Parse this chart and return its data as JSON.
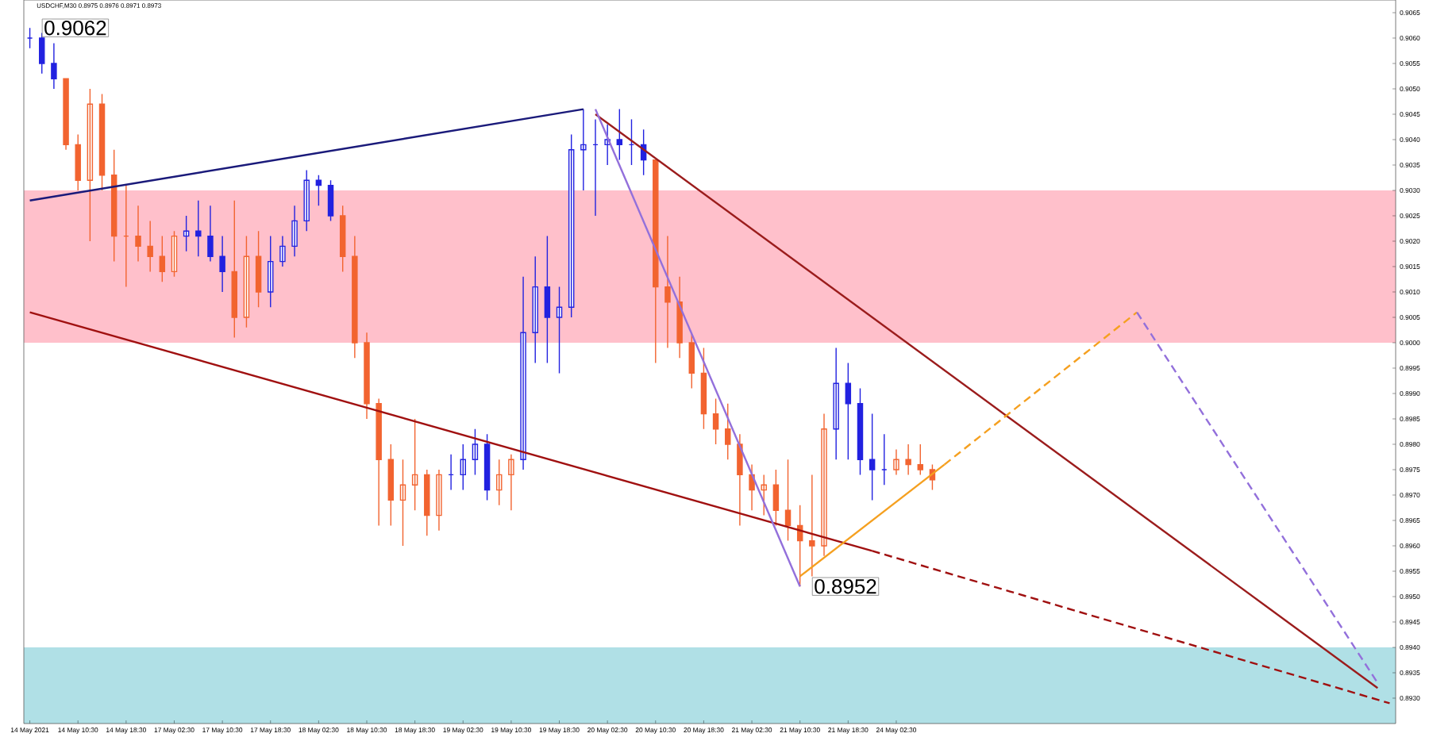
{
  "chart_data": {
    "type": "candlestick",
    "title": "USDCHF,M30  0.8975 0.8976 0.8971 0.8973",
    "categories": [
      "14 May 2021",
      null,
      null,
      null,
      "14 May 10:30",
      null,
      null,
      null,
      "14 May 18:30",
      null,
      null,
      null,
      "17 May 02:30",
      null,
      null,
      null,
      "17 May 10:30",
      null,
      null,
      null,
      "17 May 18:30",
      null,
      null,
      null,
      "18 May 02:30",
      null,
      null,
      null,
      "18 May 10:30",
      null,
      null,
      null,
      "18 May 18:30",
      null,
      null,
      null,
      "19 May 02:30",
      null,
      null,
      null,
      "19 May 10:30",
      null,
      null,
      null,
      "19 May 18:30",
      null,
      null,
      null,
      "20 May 02:30",
      null,
      null,
      null,
      "20 May 10:30",
      null,
      null,
      null,
      "20 May 18:30",
      null,
      null,
      null,
      "21 May 02:30",
      null,
      null,
      null,
      "21 May 10:30",
      null,
      null,
      null,
      "21 May 18:30",
      null,
      null,
      null,
      "24 May 02:30",
      null,
      null,
      null,
      null,
      null,
      null,
      null,
      null,
      null,
      null,
      null,
      null,
      null,
      null,
      null,
      null,
      null,
      null,
      null,
      null,
      null,
      null,
      null,
      null,
      null,
      null,
      null,
      null,
      null,
      null,
      null,
      null,
      null,
      null,
      null,
      null,
      null,
      null,
      null,
      null,
      null
    ],
    "ohlc": [
      [
        0.906,
        0.9062,
        0.9058,
        0.906
      ],
      [
        0.906,
        0.9061,
        0.9053,
        0.9055
      ],
      [
        0.9055,
        0.9059,
        0.905,
        0.9052
      ],
      [
        0.9052,
        0.9052,
        0.9038,
        0.9039
      ],
      [
        0.9039,
        0.9041,
        0.903,
        0.9032
      ],
      [
        0.9032,
        0.905,
        0.902,
        0.9047
      ],
      [
        0.9047,
        0.9049,
        0.903,
        0.9033
      ],
      [
        0.9033,
        0.9038,
        0.9016,
        0.9021
      ],
      [
        0.9021,
        0.9031,
        0.9011,
        0.9021
      ],
      [
        0.9021,
        0.9027,
        0.9016,
        0.9019
      ],
      [
        0.9019,
        0.9024,
        0.9014,
        0.9017
      ],
      [
        0.9017,
        0.9021,
        0.9012,
        0.9014
      ],
      [
        0.9014,
        0.9022,
        0.9013,
        0.9021
      ],
      [
        0.9021,
        0.9025,
        0.9018,
        0.9022
      ],
      [
        0.9022,
        0.9028,
        0.9017,
        0.9021
      ],
      [
        0.9021,
        0.9027,
        0.9016,
        0.9017
      ],
      [
        0.9017,
        0.9021,
        0.901,
        0.9014
      ],
      [
        0.9014,
        0.9028,
        0.9001,
        0.9005
      ],
      [
        0.9005,
        0.9021,
        0.9003,
        0.9017
      ],
      [
        0.9017,
        0.9022,
        0.9007,
        0.901
      ],
      [
        0.901,
        0.9021,
        0.9007,
        0.9016
      ],
      [
        0.9016,
        0.9021,
        0.9015,
        0.9019
      ],
      [
        0.9019,
        0.9027,
        0.9017,
        0.9024
      ],
      [
        0.9024,
        0.9034,
        0.9022,
        0.9032
      ],
      [
        0.9032,
        0.9033,
        0.9027,
        0.9031
      ],
      [
        0.9031,
        0.9032,
        0.9024,
        0.9025
      ],
      [
        0.9025,
        0.9027,
        0.9014,
        0.9017
      ],
      [
        0.9017,
        0.9021,
        0.8997,
        0.9
      ],
      [
        0.9,
        0.9002,
        0.8985,
        0.8988
      ],
      [
        0.8988,
        0.8989,
        0.8964,
        0.8977
      ],
      [
        0.8977,
        0.898,
        0.8964,
        0.8969
      ],
      [
        0.8969,
        0.8977,
        0.896,
        0.8972
      ],
      [
        0.8972,
        0.8985,
        0.8967,
        0.8974
      ],
      [
        0.8974,
        0.8975,
        0.8962,
        0.8966
      ],
      [
        0.8966,
        0.8975,
        0.8963,
        0.8974
      ],
      [
        0.8974,
        0.8978,
        0.8971,
        0.8974
      ],
      [
        0.8974,
        0.898,
        0.8971,
        0.8977
      ],
      [
        0.8977,
        0.8983,
        0.8974,
        0.898
      ],
      [
        0.898,
        0.8982,
        0.8969,
        0.8971
      ],
      [
        0.8971,
        0.8977,
        0.8968,
        0.8974
      ],
      [
        0.8974,
        0.8978,
        0.8967,
        0.8977
      ],
      [
        0.8977,
        0.9013,
        0.8975,
        0.9002
      ],
      [
        0.9002,
        0.9017,
        0.8996,
        0.9011
      ],
      [
        0.9011,
        0.9021,
        0.8996,
        0.9005
      ],
      [
        0.9005,
        0.9011,
        0.8994,
        0.9007
      ],
      [
        0.9007,
        0.9041,
        0.9005,
        0.9038
      ],
      [
        0.9038,
        0.9046,
        0.903,
        0.9039
      ],
      [
        0.9039,
        0.9044,
        0.9025,
        0.9039
      ],
      [
        0.9039,
        0.9043,
        0.9035,
        0.904
      ],
      [
        0.904,
        0.9046,
        0.9036,
        0.9039
      ],
      [
        0.9039,
        0.9044,
        0.9035,
        0.9039
      ],
      [
        0.9039,
        0.9042,
        0.9033,
        0.9036
      ],
      [
        0.9036,
        0.9036,
        0.8996,
        0.9011
      ],
      [
        0.9011,
        0.9021,
        0.8999,
        0.9008
      ],
      [
        0.9008,
        0.9013,
        0.8997,
        0.9
      ],
      [
        0.9,
        0.9002,
        0.8991,
        0.8994
      ],
      [
        0.8994,
        0.8999,
        0.8983,
        0.8986
      ],
      [
        0.8986,
        0.8989,
        0.898,
        0.8983
      ],
      [
        0.8983,
        0.8988,
        0.8977,
        0.898
      ],
      [
        0.898,
        0.8982,
        0.8964,
        0.8974
      ],
      [
        0.8974,
        0.8976,
        0.8967,
        0.8971
      ],
      [
        0.8971,
        0.8974,
        0.8966,
        0.8972
      ],
      [
        0.8972,
        0.8975,
        0.8964,
        0.8967
      ],
      [
        0.8967,
        0.8977,
        0.8961,
        0.8964
      ],
      [
        0.8964,
        0.8968,
        0.8952,
        0.8961
      ],
      [
        0.8961,
        0.8974,
        0.8954,
        0.896
      ],
      [
        0.896,
        0.8986,
        0.8958,
        0.8983
      ],
      [
        0.8983,
        0.8999,
        0.8977,
        0.8992
      ],
      [
        0.8992,
        0.8996,
        0.8977,
        0.8988
      ],
      [
        0.8988,
        0.8991,
        0.8974,
        0.8977
      ],
      [
        0.8977,
        0.8986,
        0.8969,
        0.8975
      ],
      [
        0.8975,
        0.8982,
        0.8972,
        0.8975
      ],
      [
        0.8975,
        0.8979,
        0.8974,
        0.8977
      ],
      [
        0.8977,
        0.898,
        0.8974,
        0.8976
      ],
      [
        0.8976,
        0.898,
        0.8974,
        0.8975
      ],
      [
        0.8975,
        0.8976,
        0.8971,
        0.8973
      ],
      null,
      null,
      null,
      null,
      null,
      null,
      null,
      null,
      null,
      null,
      null,
      null,
      null,
      null,
      null,
      null,
      null,
      null,
      null,
      null,
      null,
      null,
      null,
      null,
      null,
      null,
      null,
      null,
      null,
      null,
      null,
      null,
      null,
      null,
      null,
      null,
      null,
      null
    ],
    "colors": [
      "#2222e0",
      "#2222e0",
      "#2222e0",
      "#f26430",
      "#f26430",
      "#f26430",
      "#f26430",
      "#f26430",
      "#f26430",
      "#f26430",
      "#f26430",
      "#f26430",
      "#f26430",
      "#2222e0",
      "#2222e0",
      "#2222e0",
      "#2222e0",
      "#f26430",
      "#f26430",
      "#f26430",
      "#2222e0",
      "#2222e0",
      "#2222e0",
      "#2222e0",
      "#2222e0",
      "#2222e0",
      "#f26430",
      "#f26430",
      "#f26430",
      "#f26430",
      "#f26430",
      "#f26430",
      "#f26430",
      "#f26430",
      "#f26430",
      "#2222e0",
      "#2222e0",
      "#2222e0",
      "#2222e0",
      "#f26430",
      "#f26430",
      "#2222e0",
      "#2222e0",
      "#2222e0",
      "#2222e0",
      "#2222e0",
      "#2222e0",
      "#2222e0",
      "#2222e0",
      "#2222e0",
      "#2222e0",
      "#2222e0",
      "#f26430",
      "#f26430",
      "#f26430",
      "#f26430",
      "#f26430",
      "#f26430",
      "#f26430",
      "#f26430",
      "#f26430",
      "#f26430",
      "#f26430",
      "#f26430",
      "#f26430",
      "#f26430",
      "#f26430",
      "#2222e0",
      "#2222e0",
      "#2222e0",
      "#2222e0",
      "#2222e0",
      "#f26430",
      "#f26430",
      "#f26430",
      "#f26430",
      null,
      null,
      null,
      null,
      null,
      null,
      null,
      null,
      null,
      null,
      null,
      null,
      null,
      null,
      null,
      null,
      null,
      null,
      null,
      null,
      null,
      null,
      null,
      null,
      null,
      null,
      null,
      null,
      null,
      null,
      null,
      null,
      null,
      null,
      null,
      null,
      null,
      null
    ],
    "series": [
      {
        "type": "line",
        "color": "#1a1a7a",
        "line_style": "solid",
        "values": [
          0.9028,
          null,
          null,
          null,
          null,
          null,
          null,
          null,
          null,
          null,
          null,
          null,
          null,
          null,
          null,
          null,
          null,
          null,
          null,
          null,
          null,
          null,
          null,
          null,
          null,
          null,
          null,
          null,
          null,
          null,
          null,
          null,
          null,
          null,
          null,
          null,
          null,
          null,
          null,
          null,
          null,
          null,
          null,
          null,
          null,
          null,
          0.9046,
          null,
          null,
          null,
          null,
          null,
          null,
          null,
          null,
          null,
          null,
          null,
          null,
          null,
          null,
          null,
          null,
          null,
          null,
          null,
          null,
          null,
          null,
          null,
          null,
          null,
          null,
          null,
          null,
          null,
          null,
          null,
          null,
          null,
          null,
          null,
          null,
          null,
          null,
          null,
          null,
          null,
          null,
          null,
          null,
          null,
          null,
          null,
          null,
          null,
          null,
          null,
          null,
          null,
          null,
          null,
          null,
          null,
          null,
          null,
          null,
          null,
          null,
          null,
          null,
          null,
          null,
          null
        ]
      },
      {
        "type": "line",
        "color": "#a01010",
        "line_style": "solid",
        "values": [
          0.9006,
          null,
          null,
          null,
          null,
          null,
          null,
          null,
          null,
          null,
          null,
          null,
          null,
          null,
          null,
          null,
          null,
          null,
          null,
          null,
          null,
          null,
          null,
          null,
          null,
          null,
          null,
          null,
          null,
          null,
          null,
          null,
          null,
          null,
          null,
          null,
          null,
          null,
          null,
          null,
          null,
          null,
          null,
          null,
          null,
          null,
          null,
          null,
          null,
          null,
          null,
          null,
          null,
          null,
          null,
          null,
          null,
          null,
          null,
          null,
          null,
          null,
          null,
          null,
          null,
          null,
          null,
          null,
          null,
          null,
          0.8959,
          null,
          null,
          null,
          null,
          null,
          null,
          null,
          null,
          null,
          null,
          null,
          null,
          null,
          null,
          null,
          null,
          null,
          null,
          null,
          null,
          null,
          null,
          null,
          null,
          null,
          null,
          null,
          null,
          null,
          null,
          null,
          null,
          null,
          null,
          null,
          null,
          null,
          null,
          null,
          null,
          null,
          null,
          null
        ]
      },
      {
        "type": "line",
        "color": "#a01010",
        "line_style": "dashed",
        "values": [
          null,
          null,
          null,
          null,
          null,
          null,
          null,
          null,
          null,
          null,
          null,
          null,
          null,
          null,
          null,
          null,
          null,
          null,
          null,
          null,
          null,
          null,
          null,
          null,
          null,
          null,
          null,
          null,
          null,
          null,
          null,
          null,
          null,
          null,
          null,
          null,
          null,
          null,
          null,
          null,
          null,
          null,
          null,
          null,
          null,
          null,
          null,
          null,
          null,
          null,
          null,
          null,
          null,
          null,
          null,
          null,
          null,
          null,
          null,
          null,
          null,
          null,
          null,
          null,
          null,
          null,
          null,
          null,
          null,
          null,
          0.8959,
          null,
          null,
          null,
          null,
          null,
          null,
          null,
          null,
          null,
          null,
          null,
          null,
          null,
          null,
          null,
          null,
          null,
          null,
          null,
          null,
          null,
          null,
          null,
          null,
          null,
          null,
          null,
          null,
          null,
          null,
          null,
          null,
          null,
          null,
          null,
          null,
          null,
          null,
          null,
          null,
          null,
          null,
          0.8929
        ]
      },
      {
        "type": "line",
        "color": "#9b1c1c",
        "line_style": "solid",
        "values": [
          null,
          null,
          null,
          null,
          null,
          null,
          null,
          null,
          null,
          null,
          null,
          null,
          null,
          null,
          null,
          null,
          null,
          null,
          null,
          null,
          null,
          null,
          null,
          null,
          null,
          null,
          null,
          null,
          null,
          null,
          null,
          null,
          null,
          null,
          null,
          null,
          null,
          null,
          null,
          null,
          null,
          null,
          null,
          null,
          null,
          null,
          null,
          0.9045,
          null,
          null,
          null,
          null,
          null,
          null,
          null,
          null,
          null,
          null,
          null,
          null,
          null,
          null,
          null,
          null,
          null,
          null,
          null,
          null,
          null,
          null,
          null,
          null,
          null,
          null,
          null,
          null,
          null,
          null,
          null,
          null,
          null,
          null,
          null,
          null,
          null,
          null,
          null,
          null,
          null,
          null,
          null,
          null,
          null,
          null,
          null,
          null,
          null,
          null,
          null,
          null,
          null,
          null,
          null,
          null,
          null,
          null,
          null,
          null,
          null,
          null,
          null,
          null,
          0.8932,
          null
        ]
      },
      {
        "type": "line",
        "color": "#9370db",
        "line_style": "solid",
        "values": [
          null,
          null,
          null,
          null,
          null,
          null,
          null,
          null,
          null,
          null,
          null,
          null,
          null,
          null,
          null,
          null,
          null,
          null,
          null,
          null,
          null,
          null,
          null,
          null,
          null,
          null,
          null,
          null,
          null,
          null,
          null,
          null,
          null,
          null,
          null,
          null,
          null,
          null,
          null,
          null,
          null,
          null,
          null,
          null,
          null,
          null,
          null,
          0.9046,
          null,
          null,
          null,
          null,
          null,
          null,
          null,
          null,
          null,
          null,
          null,
          null,
          null,
          null,
          null,
          null,
          0.8952,
          null,
          null,
          null,
          null,
          null,
          null,
          null,
          null,
          null,
          null,
          null,
          null,
          null,
          null,
          null,
          null,
          null,
          null,
          null,
          null,
          null,
          null,
          null,
          null,
          null,
          null,
          null,
          null,
          null,
          null,
          null,
          null,
          null,
          null,
          null,
          null,
          null,
          null,
          null,
          null,
          null,
          null,
          null,
          null,
          null,
          null,
          null,
          null,
          null
        ]
      },
      {
        "type": "line",
        "color": "#f5a020",
        "line_style": "solid",
        "values": [
          null,
          null,
          null,
          null,
          null,
          null,
          null,
          null,
          null,
          null,
          null,
          null,
          null,
          null,
          null,
          null,
          null,
          null,
          null,
          null,
          null,
          null,
          null,
          null,
          null,
          null,
          null,
          null,
          null,
          null,
          null,
          null,
          null,
          null,
          null,
          null,
          null,
          null,
          null,
          null,
          null,
          null,
          null,
          null,
          null,
          null,
          null,
          null,
          null,
          null,
          null,
          null,
          null,
          null,
          null,
          null,
          null,
          null,
          null,
          null,
          null,
          null,
          null,
          null,
          0.8954,
          null,
          null,
          null,
          null,
          null,
          null,
          null,
          null,
          null,
          null,
          null,
          0.8976,
          null,
          null,
          null,
          null,
          null,
          null,
          null,
          null,
          null,
          null,
          null,
          null,
          null,
          null,
          null,
          null,
          null,
          null,
          null,
          null,
          null,
          null,
          null,
          null,
          null,
          null,
          null,
          null,
          null,
          null,
          null,
          null,
          null,
          null,
          null,
          null,
          null
        ]
      },
      {
        "type": "line",
        "color": "#f5a020",
        "line_style": "dashed",
        "values": [
          null,
          null,
          null,
          null,
          null,
          null,
          null,
          null,
          null,
          null,
          null,
          null,
          null,
          null,
          null,
          null,
          null,
          null,
          null,
          null,
          null,
          null,
          null,
          null,
          null,
          null,
          null,
          null,
          null,
          null,
          null,
          null,
          null,
          null,
          null,
          null,
          null,
          null,
          null,
          null,
          null,
          null,
          null,
          null,
          null,
          null,
          null,
          null,
          null,
          null,
          null,
          null,
          null,
          null,
          null,
          null,
          null,
          null,
          null,
          null,
          null,
          null,
          null,
          null,
          null,
          null,
          null,
          null,
          null,
          null,
          null,
          null,
          null,
          null,
          null,
          null,
          0.8976,
          null,
          null,
          null,
          null,
          null,
          null,
          null,
          null,
          null,
          null,
          null,
          null,
          null,
          null,
          null,
          0.9006,
          null,
          null,
          null,
          null,
          null,
          null,
          null,
          null,
          null,
          null,
          null,
          null,
          null,
          null,
          null,
          null,
          null,
          null,
          null,
          null,
          null
        ]
      },
      {
        "type": "line",
        "color": "#9370db",
        "line_style": "dashed",
        "values": [
          null,
          null,
          null,
          null,
          null,
          null,
          null,
          null,
          null,
          null,
          null,
          null,
          null,
          null,
          null,
          null,
          null,
          null,
          null,
          null,
          null,
          null,
          null,
          null,
          null,
          null,
          null,
          null,
          null,
          null,
          null,
          null,
          null,
          null,
          null,
          null,
          null,
          null,
          null,
          null,
          null,
          null,
          null,
          null,
          null,
          null,
          null,
          null,
          null,
          null,
          null,
          null,
          null,
          null,
          null,
          null,
          null,
          null,
          null,
          null,
          null,
          null,
          null,
          null,
          null,
          null,
          null,
          null,
          null,
          null,
          null,
          null,
          null,
          null,
          null,
          null,
          null,
          null,
          null,
          null,
          null,
          null,
          null,
          null,
          null,
          null,
          null,
          null,
          null,
          null,
          null,
          null,
          0.9006,
          null,
          null,
          null,
          null,
          null,
          null,
          null,
          null,
          null,
          null,
          null,
          null,
          null,
          null,
          null,
          null,
          null,
          null,
          null,
          0.8933,
          null
        ]
      }
    ],
    "bands": [
      {
        "axis": "y",
        "from": 0.9,
        "to": 0.903,
        "color": "#ffc0cb"
      },
      {
        "axis": "y",
        "from": 0.8925,
        "to": 0.894,
        "color": "#b0e0e6"
      }
    ],
    "annotations": [
      "0.9062",
      "0.8952"
    ],
    "ylim": [
      0.8925,
      0.90675
    ],
    "yticks": [
      {
        "value": 0.893,
        "label": "0.8930"
      },
      {
        "value": 0.8935,
        "label": "0.8935"
      },
      {
        "value": 0.894,
        "label": "0.8940"
      },
      {
        "value": 0.8945,
        "label": "0.8945"
      },
      {
        "value": 0.895,
        "label": "0.8950"
      },
      {
        "value": 0.8955,
        "label": "0.8955"
      },
      {
        "value": 0.896,
        "label": "0.8960"
      },
      {
        "value": 0.8965,
        "label": "0.8965"
      },
      {
        "value": 0.897,
        "label": "0.8970"
      },
      {
        "value": 0.8975,
        "label": "0.8975"
      },
      {
        "value": 0.898,
        "label": "0.8980"
      },
      {
        "value": 0.8985,
        "label": "0.8985"
      },
      {
        "value": 0.899,
        "label": "0.8990"
      },
      {
        "value": 0.8995,
        "label": "0.8995"
      },
      {
        "value": 0.9,
        "label": "0.9000"
      },
      {
        "value": 0.9005,
        "label": "0.9005"
      },
      {
        "value": 0.901,
        "label": "0.9010"
      },
      {
        "value": 0.9015,
        "label": "0.9015"
      },
      {
        "value": 0.902,
        "label": "0.9020"
      },
      {
        "value": 0.9025,
        "label": "0.9025"
      },
      {
        "value": 0.903,
        "label": "0.9030"
      },
      {
        "value": 0.9035,
        "label": "0.9035"
      },
      {
        "value": 0.904,
        "label": "0.9040"
      },
      {
        "value": 0.9045,
        "label": "0.9045"
      },
      {
        "value": 0.905,
        "label": "0.9050"
      },
      {
        "value": 0.9055,
        "label": "0.9055"
      },
      {
        "value": 0.906,
        "label": "0.9060"
      },
      {
        "value": 0.9065,
        "label": "0.9065"
      }
    ]
  }
}
